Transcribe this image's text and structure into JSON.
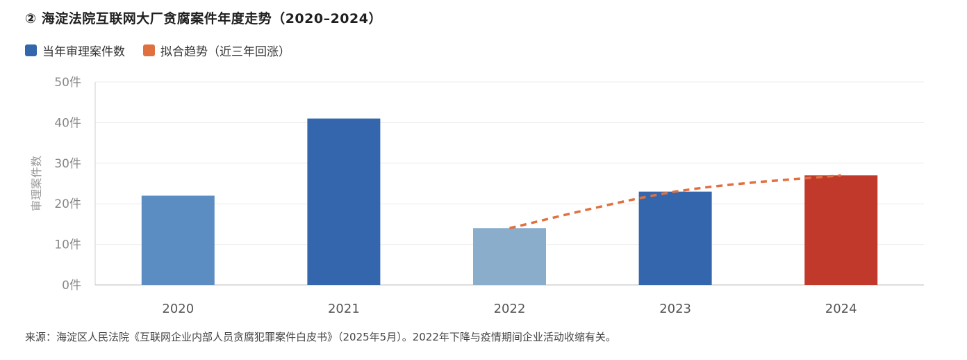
{
  "title": "② 海淀法院互联网大厂贪腐案件年度走势（2020–2024）",
  "legend": [
    {
      "label": "当年审理案件数",
      "color": "#3366AD",
      "icon": "square-swatch"
    },
    {
      "label": "拟合趋势（近三年回涨）",
      "color": "#E07040",
      "icon": "square-swatch"
    }
  ],
  "footnote": "来源：海淀区人民法院《互联网企业内部人员贪腐犯罪案件白皮书》（2025年5月）。2022年下降与疫情期间企业活动收缩有关。",
  "chart_data": {
    "type": "bar",
    "categories": [
      "2020",
      "2021",
      "2022",
      "2023",
      "2024"
    ],
    "series": [
      {
        "name": "当年审理案件数",
        "values": [
          22,
          41,
          14,
          23,
          27
        ]
      }
    ],
    "bar_colors": [
      "#5B8DC2",
      "#3366AD",
      "#8AADCC",
      "#3366AD",
      "#C0392B"
    ],
    "trend": {
      "name": "拟合趋势（近三年回涨）",
      "x": [
        "2022",
        "2023",
        "2024"
      ],
      "y": [
        14,
        23,
        27
      ],
      "color": "#E07040",
      "style": "dashed"
    },
    "ylabel": "审理案件数",
    "ylim": [
      0,
      50
    ],
    "yticks": [
      0,
      10,
      20,
      30,
      40,
      50
    ],
    "ytick_labels": [
      "0件",
      "10件",
      "20件",
      "30件",
      "40件",
      "50件"
    ],
    "grid": true,
    "legend_position": "top-left"
  }
}
